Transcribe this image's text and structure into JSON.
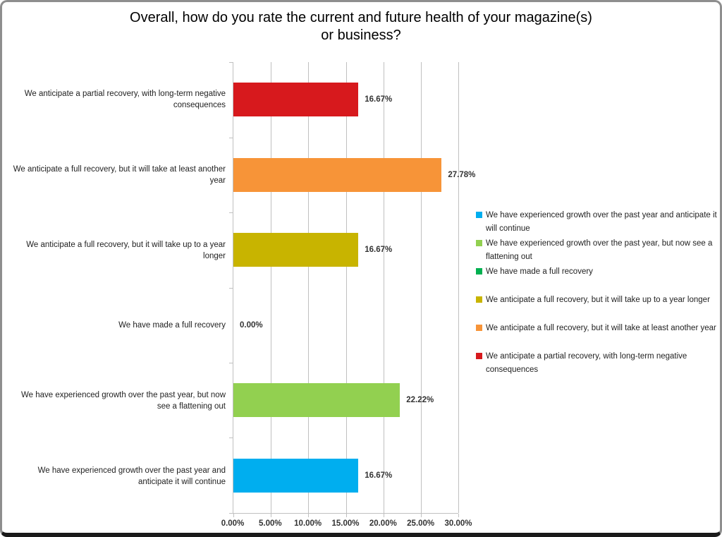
{
  "title_lines": [
    "Overall, how do you rate the current and future health of your magazine(s)",
    "or business?"
  ],
  "chart_data": {
    "type": "bar",
    "orientation": "horizontal",
    "title": "Overall, how do you rate the current and future health of your magazine(s) or business?",
    "xlabel": "",
    "ylabel": "",
    "xlim": [
      0,
      30
    ],
    "x_ticks": [
      "0.00%",
      "5.00%",
      "10.00%",
      "15.00%",
      "20.00%",
      "25.00%",
      "30.00%"
    ],
    "grid": "vertical",
    "legend_position": "right",
    "rows": [
      {
        "label": "We anticipate a partial recovery, with long-term negative consequences",
        "value": 16.67,
        "value_label": "16.67%",
        "color": "#d7191d"
      },
      {
        "label": "We anticipate a full recovery, but it will take at least another year",
        "value": 27.78,
        "value_label": "27.78%",
        "color": "#f79438"
      },
      {
        "label": "We anticipate a full recovery, but it will take up to a year longer",
        "value": 16.67,
        "value_label": "16.67%",
        "color": "#c8b400"
      },
      {
        "label": "We have made a full recovery",
        "value": 0,
        "value_label": "0.00%",
        "color": "#00b050"
      },
      {
        "label": "We have experienced growth over the past year, but now see a flattening out",
        "value": 22.22,
        "value_label": "22.22%",
        "color": "#92d050"
      },
      {
        "label": "We have experienced growth over the past year and anticipate it will continue",
        "value": 16.67,
        "value_label": "16.67%",
        "color": "#00aeef"
      }
    ]
  },
  "legend": {
    "items": [
      {
        "label": "We have experienced growth over the past year and anticipate it will continue",
        "color": "#00aeef"
      },
      {
        "label": "We have experienced growth over the past year, but now see a flattening out",
        "color": "#92d050"
      },
      {
        "label": "We have made a full recovery",
        "color": "#00b050"
      },
      {
        "label": "We anticipate a full recovery, but it will take up to a year longer",
        "color": "#c8b400"
      },
      {
        "label": "We anticipate a full recovery, but it will take at least another year",
        "color": "#f79438"
      },
      {
        "label": "We anticipate a partial recovery, with long-term negative consequences",
        "color": "#d7191d"
      }
    ]
  },
  "colors": {
    "gridline": "#c0c0c0",
    "frame_border": "#8e8e8e",
    "frame_border_bottom": "#1a1a1a",
    "text": "#222222"
  }
}
